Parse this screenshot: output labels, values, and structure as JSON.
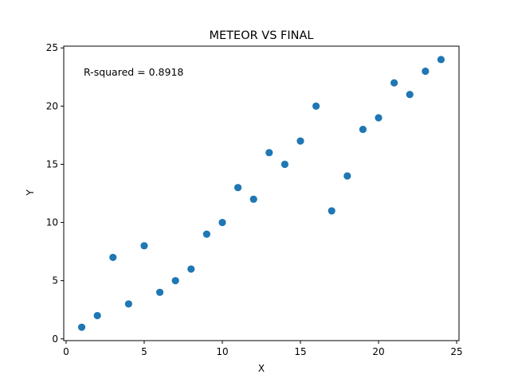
{
  "chart_data": {
    "type": "scatter",
    "title": "METEOR VS FINAL",
    "xlabel": "X",
    "ylabel": "Y",
    "xlim": [
      -0.15,
      25.15
    ],
    "ylim": [
      -0.15,
      25.15
    ],
    "xticks": [
      0,
      5,
      10,
      15,
      20,
      25
    ],
    "yticks": [
      0,
      5,
      10,
      15,
      20,
      25
    ],
    "grid": false,
    "annotation": "R-squared = 0.8918",
    "marker_color": "#1f77b4",
    "series": [
      {
        "x": [
          1,
          2,
          3,
          4,
          5,
          6,
          7,
          8,
          9,
          10,
          11,
          12,
          13,
          14,
          15,
          16,
          17,
          18,
          19,
          20,
          21,
          22,
          23,
          24
        ],
        "y": [
          1,
          2,
          7,
          3,
          8,
          4,
          5,
          6,
          9,
          10,
          13,
          12,
          16,
          15,
          17,
          20,
          11,
          14,
          18,
          19,
          22,
          21,
          23,
          24
        ]
      }
    ]
  }
}
